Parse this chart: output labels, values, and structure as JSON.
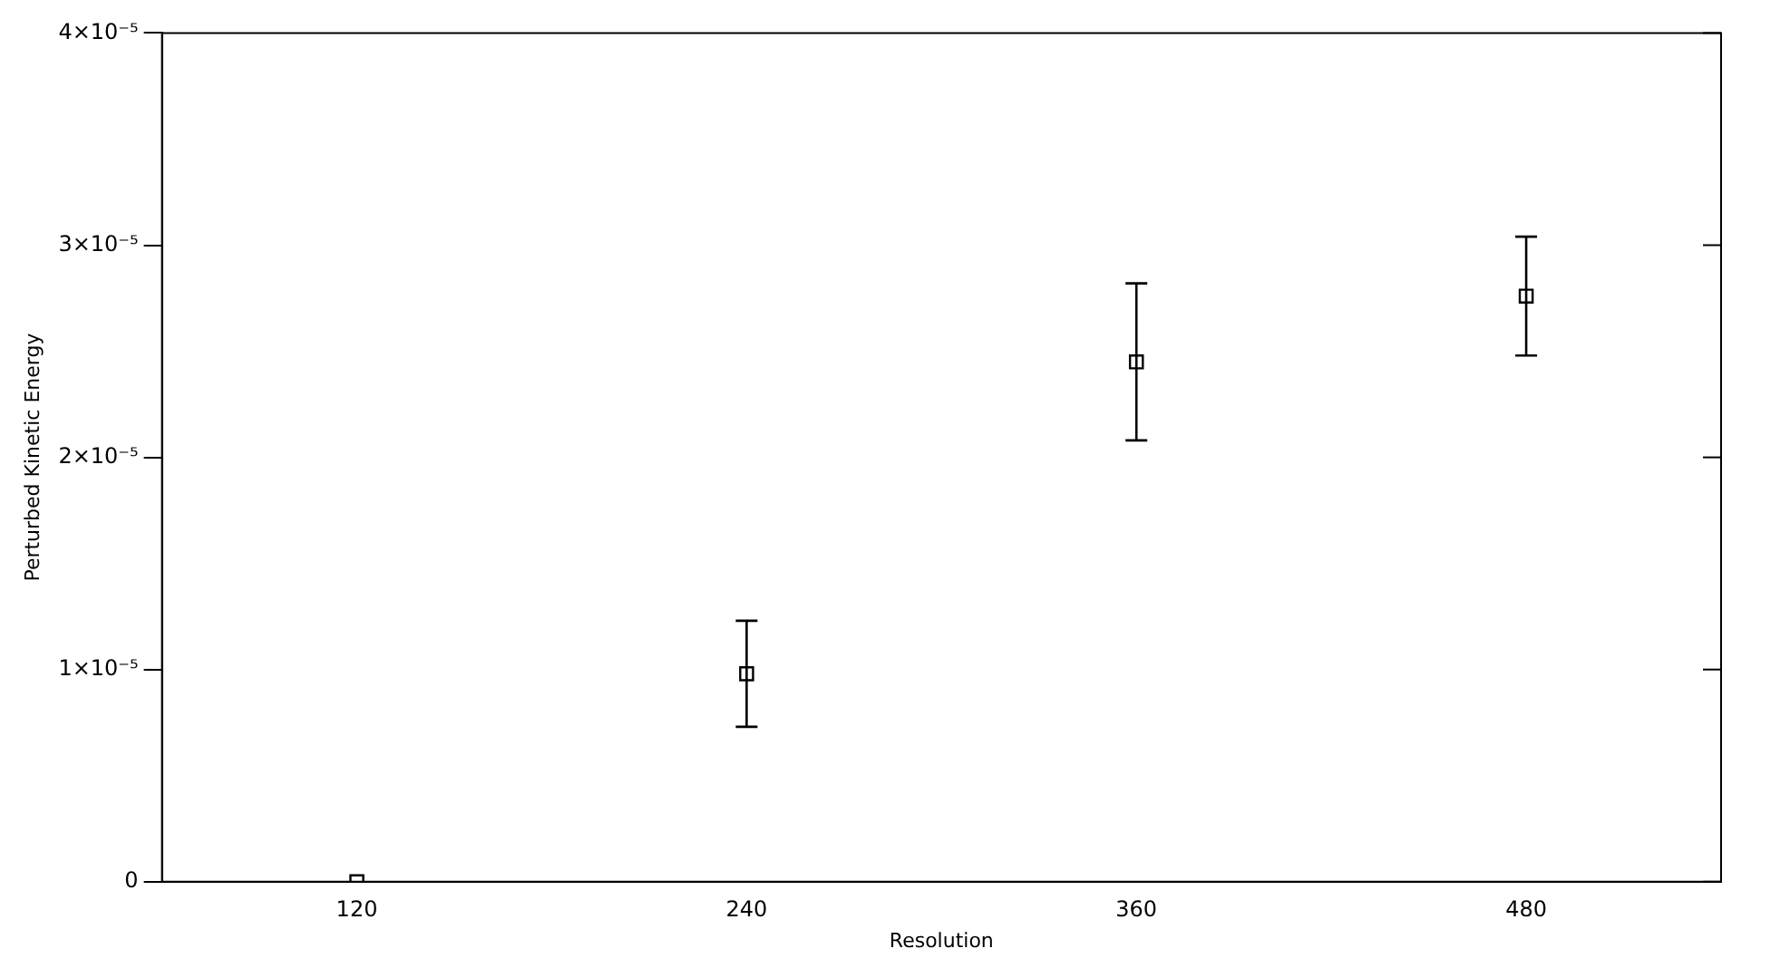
{
  "chart_data": {
    "type": "scatter",
    "xlabel": "Resolution",
    "ylabel": "Perturbed Kinetic Energy",
    "categories": [
      "120",
      "240",
      "360",
      "480"
    ],
    "series": [
      {
        "color": "#000000",
        "values": [
          0,
          9.8e-06,
          2.45e-05,
          2.76e-05
        ],
        "errors": [
          null,
          2.5e-06,
          3.7e-06,
          2.8e-06
        ]
      }
    ],
    "ylim": [
      0,
      4e-05
    ],
    "yticks": [
      0,
      {
        "value": 1e-05,
        "label": "1×10⁻⁵"
      },
      {
        "value": 2e-05,
        "label": "2×10⁻⁵"
      },
      {
        "value": 3e-05,
        "label": "3×10⁻⁵"
      },
      {
        "value": 4e-05,
        "label": "4×10⁻⁵"
      }
    ],
    "marker": "square",
    "grid": false,
    "legend": false
  }
}
